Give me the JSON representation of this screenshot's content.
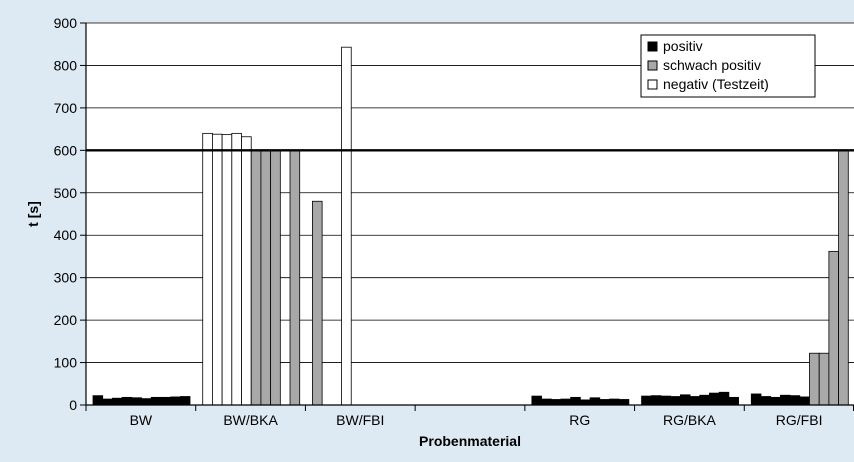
{
  "colors": {
    "background": "#dde9f3",
    "plot_background": "#ffffff",
    "positiv": "#000000",
    "schwach_positiv": "#a8a8a8",
    "negativ": "#ffffff"
  },
  "chart_data": {
    "type": "bar",
    "title": "",
    "xlabel": "Probenmaterial",
    "ylabel": "t [s]",
    "ylim": [
      0,
      900
    ],
    "yticks": [
      0,
      100,
      200,
      300,
      400,
      500,
      600,
      700,
      800,
      900
    ],
    "grid": true,
    "reference_line": 600,
    "legend": {
      "position": "top-right",
      "entries": [
        {
          "key": "positiv",
          "label": "positiv"
        },
        {
          "key": "schwach_positiv",
          "label": "schwach positiv"
        },
        {
          "key": "negativ",
          "label": "negativ (Testzeit)"
        }
      ]
    },
    "categories": [
      {
        "label": "BW",
        "bars": [
          {
            "value": 22,
            "type": "positiv"
          },
          {
            "value": 14,
            "type": "positiv"
          },
          {
            "value": 16,
            "type": "positiv"
          },
          {
            "value": 18,
            "type": "positiv"
          },
          {
            "value": 17,
            "type": "positiv"
          },
          {
            "value": 15,
            "type": "positiv"
          },
          {
            "value": 18,
            "type": "positiv"
          },
          {
            "value": 18,
            "type": "positiv"
          },
          {
            "value": 19,
            "type": "positiv"
          },
          {
            "value": 20,
            "type": "positiv"
          }
        ]
      },
      {
        "label": "BW/BKA",
        "bars": [
          {
            "value": 640,
            "type": "negativ"
          },
          {
            "value": 638,
            "type": "negativ"
          },
          {
            "value": 637,
            "type": "negativ"
          },
          {
            "value": 640,
            "type": "negativ"
          },
          {
            "value": 632,
            "type": "negativ"
          },
          {
            "value": 600,
            "type": "schwach_positiv"
          },
          {
            "value": 600,
            "type": "schwach_positiv"
          },
          {
            "value": 600,
            "type": "schwach_positiv"
          },
          {
            "value": 0,
            "type": "schwach_positiv"
          },
          {
            "value": 600,
            "type": "schwach_positiv"
          }
        ]
      },
      {
        "label": "BW/FBI",
        "bars": [
          {
            "value": 480,
            "type": "schwach_positiv"
          },
          {
            "value": 0,
            "type": "schwach_positiv"
          },
          {
            "value": 0,
            "type": "schwach_positiv"
          },
          {
            "value": 843,
            "type": "negativ"
          },
          {
            "value": 0,
            "type": "negativ"
          },
          {
            "value": 0,
            "type": "negativ"
          },
          {
            "value": 0,
            "type": "negativ"
          },
          {
            "value": 0,
            "type": "negativ"
          },
          {
            "value": 0,
            "type": "negativ"
          },
          {
            "value": 0,
            "type": "negativ"
          }
        ]
      },
      {
        "label": "",
        "bars": []
      },
      {
        "label": "RG",
        "bars": [
          {
            "value": 21,
            "type": "positiv"
          },
          {
            "value": 14,
            "type": "positiv"
          },
          {
            "value": 13,
            "type": "positiv"
          },
          {
            "value": 14,
            "type": "positiv"
          },
          {
            "value": 18,
            "type": "positiv"
          },
          {
            "value": 12,
            "type": "positiv"
          },
          {
            "value": 17,
            "type": "positiv"
          },
          {
            "value": 13,
            "type": "positiv"
          },
          {
            "value": 14,
            "type": "positiv"
          },
          {
            "value": 13,
            "type": "positiv"
          }
        ]
      },
      {
        "label": "RG/BKA",
        "bars": [
          {
            "value": 21,
            "type": "positiv"
          },
          {
            "value": 22,
            "type": "positiv"
          },
          {
            "value": 21,
            "type": "positiv"
          },
          {
            "value": 20,
            "type": "positiv"
          },
          {
            "value": 24,
            "type": "positiv"
          },
          {
            "value": 20,
            "type": "positiv"
          },
          {
            "value": 23,
            "type": "positiv"
          },
          {
            "value": 28,
            "type": "positiv"
          },
          {
            "value": 30,
            "type": "positiv"
          },
          {
            "value": 18,
            "type": "positiv"
          }
        ]
      },
      {
        "label": "RG/FBI",
        "bars": [
          {
            "value": 26,
            "type": "positiv"
          },
          {
            "value": 20,
            "type": "positiv"
          },
          {
            "value": 18,
            "type": "positiv"
          },
          {
            "value": 23,
            "type": "positiv"
          },
          {
            "value": 22,
            "type": "positiv"
          },
          {
            "value": 19,
            "type": "positiv"
          },
          {
            "value": 122,
            "type": "schwach_positiv"
          },
          {
            "value": 122,
            "type": "schwach_positiv"
          },
          {
            "value": 362,
            "type": "schwach_positiv"
          },
          {
            "value": 600,
            "type": "schwach_positiv"
          }
        ]
      }
    ]
  }
}
